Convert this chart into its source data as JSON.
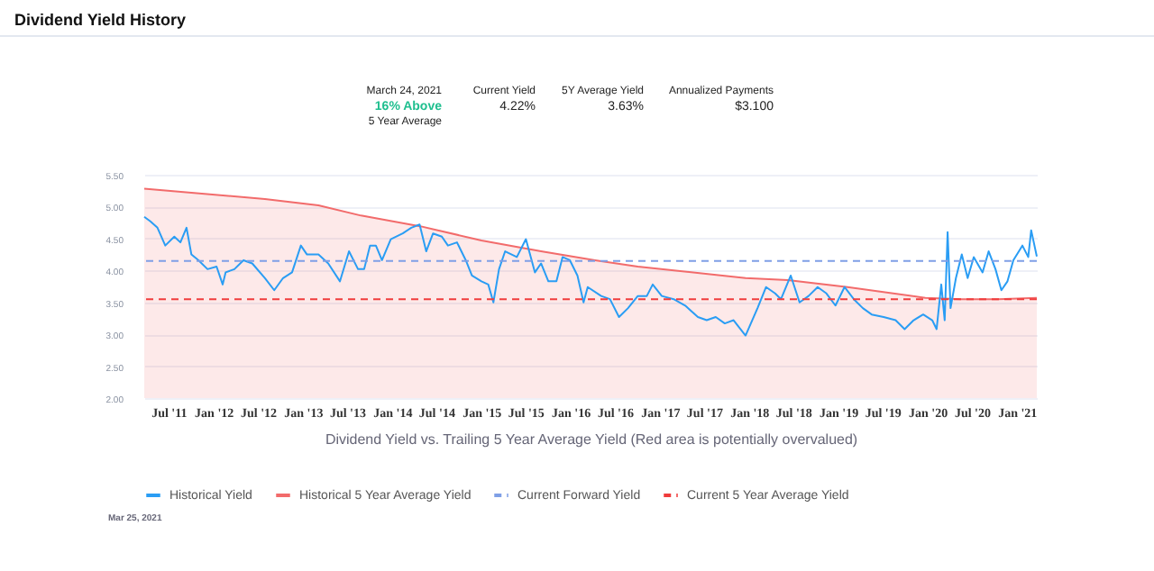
{
  "chart_data": {
    "type": "line",
    "title": "Dividend Yield History",
    "xlabel": "Dividend Yield vs. Trailing 5 Year Average Yield (Red area is potentially overvalued)",
    "annotations": [
      "March 24, 2021",
      "16%  Above",
      "5 Year Average",
      "Current Yield",
      "4.22%",
      "5Y Average Yield",
      "3.63%",
      "Annualized Payments",
      "$3.100",
      "Mar 25, 2021"
    ],
    "xlim": [
      "2011-03-24",
      "2021-03-24"
    ],
    "xticks": [
      {
        "value": "2011-07-01",
        "label": "Jul '11"
      },
      {
        "value": "2012-01-01",
        "label": "Jan '12"
      },
      {
        "value": "2012-07-01",
        "label": "Jul '12"
      },
      {
        "value": "2013-01-01",
        "label": "Jan '13"
      },
      {
        "value": "2013-07-01",
        "label": "Jul '13"
      },
      {
        "value": "2014-01-01",
        "label": "Jan '14"
      },
      {
        "value": "2014-07-01",
        "label": "Jul '14"
      },
      {
        "value": "2015-01-01",
        "label": "Jan '15"
      },
      {
        "value": "2015-07-01",
        "label": "Jul '15"
      },
      {
        "value": "2016-01-01",
        "label": "Jan '16"
      },
      {
        "value": "2016-07-01",
        "label": "Jul '16"
      },
      {
        "value": "2017-01-01",
        "label": "Jan '17"
      },
      {
        "value": "2017-07-01",
        "label": "Jul '17"
      },
      {
        "value": "2018-01-01",
        "label": "Jan '18"
      },
      {
        "value": "2018-07-01",
        "label": "Jul '18"
      },
      {
        "value": "2019-01-01",
        "label": "Jan '19"
      },
      {
        "value": "2019-07-01",
        "label": "Jul '19"
      },
      {
        "value": "2020-01-01",
        "label": "Jan '20"
      },
      {
        "value": "2020-07-01",
        "label": "Jul '20"
      },
      {
        "value": "2021-01-01",
        "label": "Jan '21"
      }
    ],
    "ylim": [
      2.0,
      5.5
    ],
    "yticks": [
      {
        "value": 2.0,
        "label": "2.00"
      },
      {
        "value": 2.5,
        "label": "2.50"
      },
      {
        "value": 3.0,
        "label": "3.00"
      },
      {
        "value": 3.5,
        "label": "3.50"
      },
      {
        "value": 4.0,
        "label": "4.00"
      },
      {
        "value": 4.5,
        "label": "4.50"
      },
      {
        "value": 5.0,
        "label": "5.00"
      },
      {
        "value": 5.5,
        "label": "5.50"
      }
    ],
    "grid": "y",
    "legend": "bottom",
    "series": [
      {
        "name": "Historical Yield",
        "type": "line",
        "color": "#2a9df4",
        "x": [
          "2011-03-24",
          "2011-04-18",
          "2011-05-17",
          "2011-06-18",
          "2011-07-25",
          "2011-08-19",
          "2011-09-13",
          "2011-10-03",
          "2011-11-01",
          "2011-12-08",
          "2012-01-14",
          "2012-02-08",
          "2012-02-20",
          "2012-03-27",
          "2012-05-03",
          "2012-06-08",
          "2012-07-30",
          "2012-09-06",
          "2012-10-12",
          "2012-11-18",
          "2012-12-24",
          "2013-01-18",
          "2013-03-06",
          "2013-04-15",
          "2013-06-02",
          "2013-07-09",
          "2013-08-15",
          "2013-09-09",
          "2013-10-03",
          "2013-10-27",
          "2013-11-21",
          "2013-12-27",
          "2014-02-14",
          "2014-03-21",
          "2014-04-24",
          "2014-05-21",
          "2014-06-18",
          "2014-07-24",
          "2014-08-18",
          "2014-09-24",
          "2014-10-30",
          "2014-11-24",
          "2015-01-02",
          "2015-01-30",
          "2015-02-20",
          "2015-03-15",
          "2015-04-09",
          "2015-05-27",
          "2015-07-03",
          "2015-08-09",
          "2015-09-03",
          "2015-10-03",
          "2015-11-05",
          "2015-11-30",
          "2015-12-30",
          "2016-01-30",
          "2016-02-24",
          "2016-03-12",
          "2016-05-06",
          "2016-06-11",
          "2016-07-18",
          "2016-08-24",
          "2016-10-03",
          "2016-11-09",
          "2016-12-03",
          "2017-01-09",
          "2017-02-27",
          "2017-04-15",
          "2017-06-06",
          "2017-07-12",
          "2017-08-18",
          "2017-09-24",
          "2017-10-30",
          "2017-12-18",
          "2018-02-05",
          "2018-03-12",
          "2018-04-18",
          "2018-05-12",
          "2018-06-21",
          "2018-07-27",
          "2018-09-02",
          "2018-10-09",
          "2018-11-14",
          "2018-12-21",
          "2019-01-27",
          "2019-03-06",
          "2019-04-12",
          "2019-05-18",
          "2019-07-06",
          "2019-08-24",
          "2019-09-30",
          "2019-11-06",
          "2019-12-15",
          "2020-01-21",
          "2020-02-08",
          "2020-02-27",
          "2020-03-12",
          "2020-03-24",
          "2020-04-05",
          "2020-04-27",
          "2020-05-21",
          "2020-06-14",
          "2020-07-09",
          "2020-08-14",
          "2020-09-08",
          "2020-10-06",
          "2020-10-30",
          "2020-11-24",
          "2020-12-18",
          "2021-01-24",
          "2021-02-17",
          "2021-03-01",
          "2021-03-24"
        ],
        "values": [
          4.84,
          4.77,
          4.67,
          4.39,
          4.53,
          4.44,
          4.67,
          4.25,
          4.16,
          4.02,
          4.06,
          3.78,
          3.97,
          4.02,
          4.16,
          4.11,
          3.88,
          3.69,
          3.88,
          3.97,
          4.39,
          4.25,
          4.25,
          4.11,
          3.83,
          4.3,
          4.02,
          4.02,
          4.39,
          4.39,
          4.16,
          4.49,
          4.58,
          4.67,
          4.72,
          4.3,
          4.58,
          4.53,
          4.39,
          4.44,
          4.16,
          3.92,
          3.83,
          3.78,
          3.5,
          4.02,
          4.3,
          4.21,
          4.49,
          3.97,
          4.11,
          3.83,
          3.83,
          4.21,
          4.16,
          3.92,
          3.5,
          3.74,
          3.6,
          3.55,
          3.27,
          3.41,
          3.6,
          3.6,
          3.78,
          3.6,
          3.55,
          3.45,
          3.27,
          3.22,
          3.27,
          3.17,
          3.22,
          2.98,
          3.41,
          3.74,
          3.64,
          3.55,
          3.92,
          3.5,
          3.6,
          3.74,
          3.64,
          3.45,
          3.74,
          3.55,
          3.41,
          3.31,
          3.27,
          3.22,
          3.08,
          3.22,
          3.31,
          3.22,
          3.08,
          3.78,
          3.22,
          4.6,
          3.41,
          3.88,
          4.25,
          3.88,
          4.21,
          3.97,
          4.3,
          4.02,
          3.69,
          3.83,
          4.16,
          4.39,
          4.21,
          4.63,
          4.22
        ]
      },
      {
        "name": "Historical 5 Year Average Yield",
        "type": "area",
        "color": "#f26b6b",
        "x": [
          "2011-03-24",
          "2012-07-30",
          "2013-03-06",
          "2013-08-27",
          "2014-04-30",
          "2015-01-02",
          "2015-09-03",
          "2016-04-11",
          "2016-10-03",
          "2017-12-18",
          "2018-06-09",
          "2019-02-08",
          "2019-12-24",
          "2020-05-21",
          "2020-10-15",
          "2021-03-24"
        ],
        "values": [
          5.28,
          5.12,
          5.02,
          4.86,
          4.69,
          4.47,
          4.3,
          4.16,
          4.06,
          3.88,
          3.85,
          3.74,
          3.57,
          3.55,
          3.55,
          3.57
        ]
      }
    ],
    "ref_lines": [
      {
        "axis": "y",
        "value": 4.15,
        "label": "Current Forward Yield",
        "color": "#7f9fe6",
        "line_style": "dashed"
      },
      {
        "axis": "y",
        "value": 3.55,
        "label": "Current 5 Year Average Yield",
        "color": "#f03c3c",
        "line_style": "dashed"
      }
    ]
  }
}
